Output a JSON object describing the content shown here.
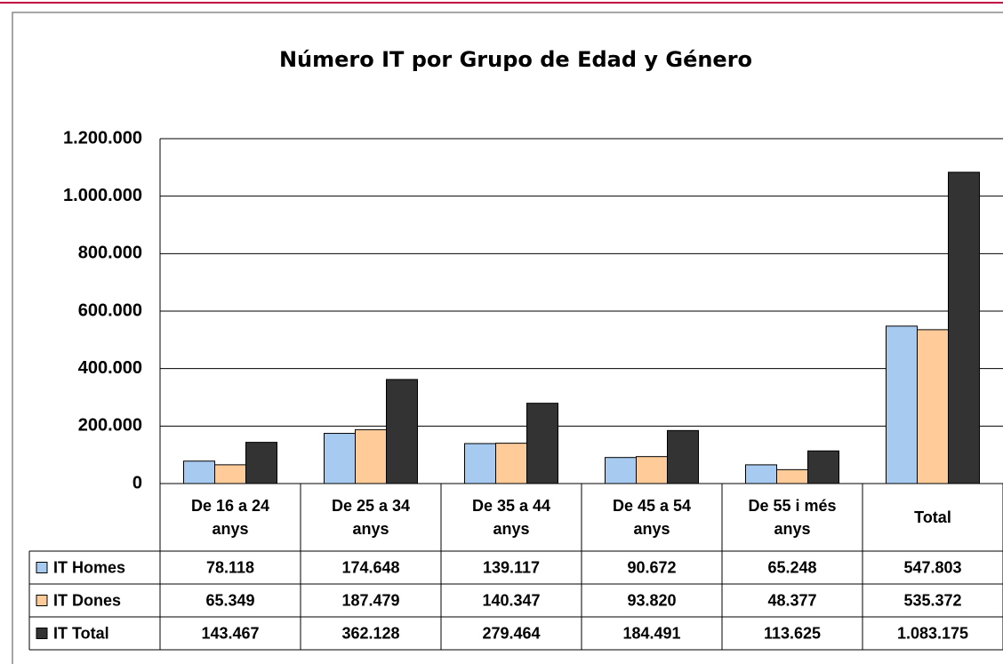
{
  "chart_data": {
    "type": "bar",
    "title": "Número IT por Grupo de Edad y Género",
    "categories": [
      "De 16 a 24 anys",
      "De 25 a 34 anys",
      "De 35 a 44 anys",
      "De 45 a 54 anys",
      "De 55 i més anys",
      "Total"
    ],
    "series": [
      {
        "name": "IT Homes",
        "color": "#a6caf0",
        "values": [
          78118,
          174648,
          139117,
          90672,
          65248,
          547803
        ],
        "value_labels": [
          "78.118",
          "174.648",
          "139.117",
          "90.672",
          "65.248",
          "547.803"
        ]
      },
      {
        "name": "IT Dones",
        "color": "#ffcc99",
        "values": [
          65349,
          187479,
          140347,
          93820,
          48377,
          535372
        ],
        "value_labels": [
          "65.349",
          "187.479",
          "140.347",
          "93.820",
          "48.377",
          "535.372"
        ]
      },
      {
        "name": "IT Total",
        "color": "#333333",
        "values": [
          143467,
          362128,
          279464,
          184491,
          113625,
          1083175
        ],
        "value_labels": [
          "143.467",
          "362.128",
          "279.464",
          "184.491",
          "113.625",
          "1.083.175"
        ]
      }
    ],
    "ylim": [
      0,
      1200000
    ],
    "yticks": [
      0,
      {
        "value": 200000,
        "label": "200.000"
      },
      {
        "value": 400000,
        "label": "400.000"
      },
      {
        "value": 600000,
        "label": "600.000"
      },
      {
        "value": 800000,
        "label": "800.000"
      },
      {
        "value": 1000000,
        "label": "1.000.000"
      },
      {
        "value": 1200000,
        "label": "1.200.000"
      }
    ],
    "grid": true
  }
}
